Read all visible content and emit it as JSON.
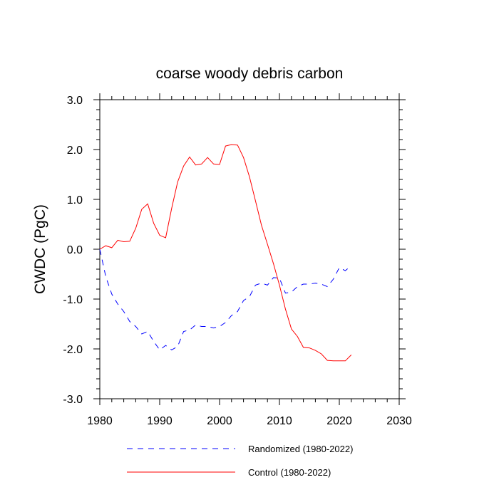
{
  "chart_data": {
    "type": "line",
    "title": "coarse woody debris carbon",
    "xlabel": "",
    "ylabel": "CWDC  (PgC)",
    "xlim": [
      1980,
      2030
    ],
    "ylim": [
      -3.0,
      3.0
    ],
    "x_ticks": [
      1980,
      1990,
      2000,
      2010,
      2020,
      2030
    ],
    "x_tick_labels": [
      "1980",
      "1990",
      "2000",
      "2010",
      "2020",
      "2030"
    ],
    "y_ticks": [
      -3.0,
      -2.0,
      -1.0,
      0.0,
      1.0,
      2.0,
      3.0
    ],
    "y_tick_labels": [
      "-3.0",
      "-2.0",
      "-1.0",
      "0.0",
      "1.0",
      "2.0",
      "3.0"
    ],
    "grid": false,
    "legend_position": "bottom",
    "series": [
      {
        "name": "Randomized (1980-2022)",
        "color": "#0000ff",
        "style": "dashed",
        "x": [
          1980,
          1981,
          1982,
          1983,
          1984,
          1985,
          1986,
          1987,
          1988,
          1989,
          1990,
          1991,
          1992,
          1993,
          1994,
          1995,
          1996,
          1997,
          1998,
          1999,
          2000,
          2001,
          2002,
          2003,
          2004,
          2005,
          2006,
          2007,
          2008,
          2009,
          2010,
          2011,
          2012,
          2013,
          2014,
          2015,
          2016,
          2017,
          2018,
          2019,
          2020,
          2021,
          2022
        ],
        "values": [
          0.0,
          -0.55,
          -0.9,
          -1.1,
          -1.25,
          -1.45,
          -1.55,
          -1.7,
          -1.65,
          -1.85,
          -2.02,
          -1.93,
          -2.02,
          -1.95,
          -1.65,
          -1.62,
          -1.52,
          -1.55,
          -1.55,
          -1.58,
          -1.55,
          -1.47,
          -1.33,
          -1.25,
          -1.03,
          -0.95,
          -0.72,
          -0.68,
          -0.72,
          -0.57,
          -0.58,
          -0.88,
          -0.86,
          -0.75,
          -0.7,
          -0.7,
          -0.68,
          -0.7,
          -0.75,
          -0.6,
          -0.37,
          -0.43,
          -0.33
        ]
      },
      {
        "name": "Control (1980-2022)",
        "color": "#ff0000",
        "style": "solid",
        "x": [
          1980,
          1981,
          1982,
          1983,
          1984,
          1985,
          1986,
          1987,
          1988,
          1989,
          1990,
          1991,
          1992,
          1993,
          1994,
          1995,
          1996,
          1997,
          1998,
          1999,
          2000,
          2001,
          2002,
          2003,
          2004,
          2005,
          2006,
          2007,
          2008,
          2009,
          2010,
          2011,
          2012,
          2013,
          2014,
          2015,
          2016,
          2017,
          2018,
          2019,
          2020,
          2021,
          2022
        ],
        "values": [
          0.0,
          0.07,
          0.03,
          0.18,
          0.15,
          0.16,
          0.42,
          0.8,
          0.91,
          0.52,
          0.28,
          0.23,
          0.82,
          1.35,
          1.67,
          1.85,
          1.69,
          1.71,
          1.84,
          1.71,
          1.7,
          2.07,
          2.1,
          2.09,
          1.84,
          1.45,
          0.97,
          0.48,
          0.1,
          -0.29,
          -0.72,
          -1.2,
          -1.6,
          -1.75,
          -1.97,
          -1.98,
          -2.03,
          -2.1,
          -2.23,
          -2.24,
          -2.24,
          -2.24,
          -2.12
        ]
      }
    ]
  }
}
